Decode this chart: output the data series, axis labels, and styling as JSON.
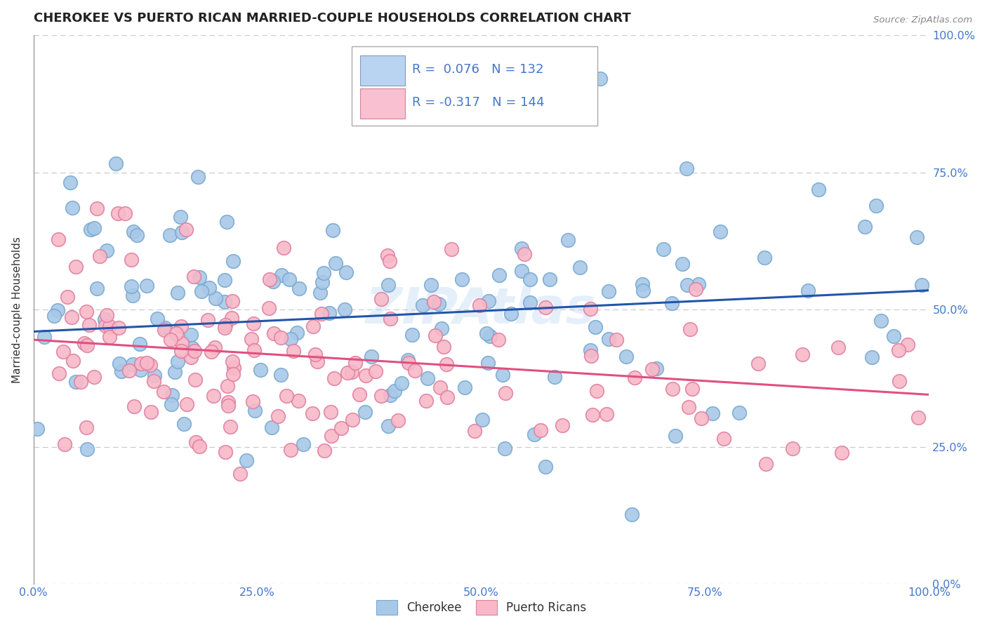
{
  "title": "CHEROKEE VS PUERTO RICAN MARRIED-COUPLE HOUSEHOLDS CORRELATION CHART",
  "source": "Source: ZipAtlas.com",
  "ylabel": "Married-couple Households",
  "xlabel": "",
  "cherokee_R": 0.076,
  "cherokee_N": 132,
  "puertoRican_R": -0.317,
  "puertoRican_N": 144,
  "cherokee_color": "#A8C8E8",
  "cherokee_edge_color": "#7AAAD0",
  "cherokee_line_color": "#2255AA",
  "puertoRican_color": "#F8B8C8",
  "puertoRican_edge_color": "#E080A0",
  "puertoRican_line_color": "#E05080",
  "legend_box_color_cherokee": "#B8D4F0",
  "legend_box_color_pr": "#F8C0D0",
  "watermark": "ZIPAtlas",
  "background_color": "#FFFFFF",
  "grid_color": "#CCCCCC",
  "xlim": [
    0,
    1
  ],
  "ylim": [
    0,
    1
  ],
  "xticks": [
    0,
    0.25,
    0.5,
    0.75,
    1.0
  ],
  "yticks": [
    0.0,
    0.25,
    0.5,
    0.75,
    1.0
  ],
  "xticklabels": [
    "0.0%",
    "25.0%",
    "50.0%",
    "75.0%",
    "100.0%"
  ],
  "yticklabels": [
    "0.0%",
    "25.0%",
    "50.0%",
    "75.0%",
    "100.0%"
  ],
  "title_color": "#222222",
  "axis_label_color": "#333333",
  "tick_label_color": "#4477CC",
  "legend_R_color": "#4477CC",
  "cherokee_trend_y0": 0.46,
  "cherokee_trend_y1": 0.535,
  "pr_trend_y0": 0.445,
  "pr_trend_y1": 0.345
}
